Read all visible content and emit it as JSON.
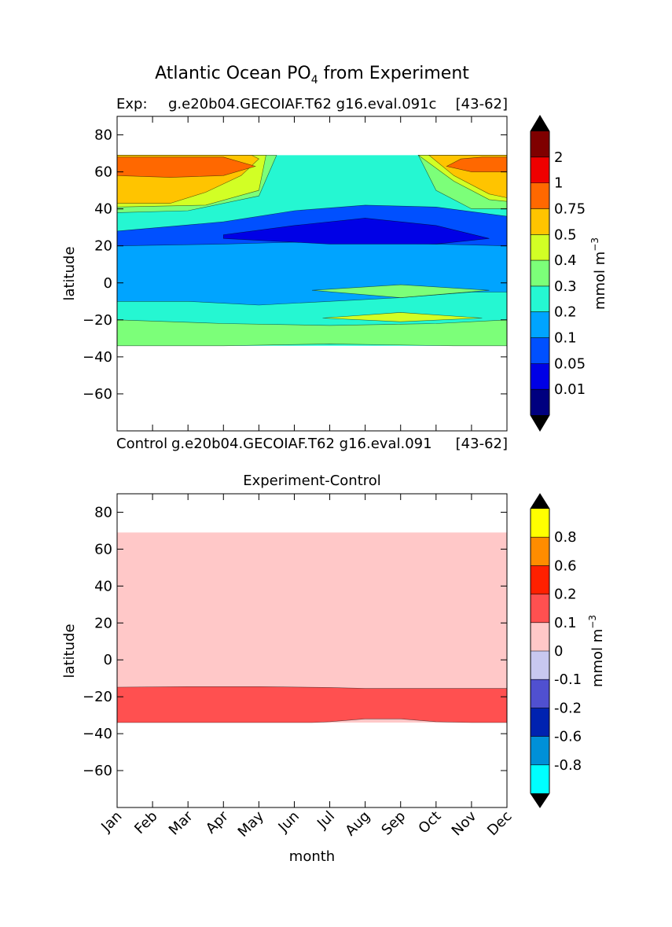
{
  "figure": {
    "title_main": "Atlantic Ocean PO",
    "title_sub": "4",
    "title_rest": " from Experiment"
  },
  "chart_data": [
    {
      "type": "heatmap",
      "name": "experiment",
      "subtitle_left": "Exp:",
      "subtitle_center": "g.e20b04.GECOIAF.T62 g16.eval.091c",
      "subtitle_right": "[43-62]",
      "bottom_left": "Control",
      "bottom_center": "g.e20b04.GECOIAF.T62 g16.eval.091",
      "bottom_right": "[43-62]",
      "ylabel": "latitude",
      "xlabel": "",
      "xlim": [
        0,
        11
      ],
      "ylim": [
        -80,
        90
      ],
      "yticks": [
        80,
        60,
        40,
        20,
        0,
        -20,
        -40,
        -60
      ],
      "ytick_labels": [
        "80",
        "60",
        "40",
        "20",
        "0",
        "−20",
        "−40",
        "−60"
      ],
      "data_lat_range": [
        -34,
        69
      ],
      "colorbar": {
        "label": "mmol m",
        "label_exp": "−3",
        "levels": [
          "0.01",
          "0.05",
          "0.1",
          "0.2",
          "0.3",
          "0.4",
          "0.5",
          "0.75",
          "1",
          "2"
        ],
        "colors": [
          "#00007f",
          "#0000e6",
          "#0050ff",
          "#00a4ff",
          "#25f7d2",
          "#7cff79",
          "#d2ff25",
          "#ffc400",
          "#ff6800",
          "#ef0000",
          "#7f0000"
        ],
        "extend": "both"
      },
      "regions": [
        {
          "level": 4,
          "t": [
            0,
            11,
            11,
            0
          ],
          "lat": [
            -34,
            -34,
            69,
            69
          ],
          "desc": "background 0.2-0.3"
        },
        {
          "level": 5,
          "t": [
            0,
            3,
            6,
            9.5,
            11,
            11,
            9,
            6,
            3,
            0
          ],
          "lat": [
            -34,
            -34,
            -33,
            -34,
            -34,
            -20,
            -22,
            -23,
            -22,
            -20
          ]
        },
        {
          "level": 3,
          "t": [
            0,
            2,
            4,
            6,
            8,
            10,
            11,
            11,
            8,
            6,
            4,
            2,
            0
          ],
          "lat": [
            -10,
            -10,
            -12,
            -10,
            -8,
            -5,
            -5,
            25,
            33,
            34,
            30,
            24,
            20
          ]
        },
        {
          "level": 5,
          "t": [
            5.5,
            8,
            10.5,
            8,
            5.5
          ],
          "lat": [
            -4,
            -8,
            -4,
            -1,
            -4
          ]
        },
        {
          "level": 6,
          "t": [
            5.8,
            8,
            10.3,
            8,
            5.8
          ],
          "lat": [
            -19,
            -21,
            -19,
            -16,
            -19
          ]
        },
        {
          "level": 2,
          "t": [
            0,
            3,
            5,
            7,
            9,
            11,
            11,
            9,
            7,
            5,
            3,
            0
          ],
          "lat": [
            20,
            21,
            22,
            22,
            21,
            20,
            36,
            41,
            42,
            39,
            33,
            28
          ]
        },
        {
          "level": 1,
          "t": [
            3,
            6,
            9,
            10.5,
            9,
            7,
            5,
            3
          ],
          "lat": [
            24,
            21,
            21,
            24,
            31,
            35,
            31,
            26
          ]
        },
        {
          "level": 5,
          "t": [
            0,
            2,
            4,
            4.5,
            4,
            2,
            0
          ],
          "lat": [
            38,
            39,
            47,
            69,
            69,
            69,
            69
          ]
        },
        {
          "level": 5,
          "t": [
            8.5,
            9,
            10,
            11,
            11,
            9.5,
            8.5
          ],
          "lat": [
            69,
            50,
            40,
            40,
            69,
            69,
            69
          ]
        },
        {
          "level": 6,
          "t": [
            0,
            2.5,
            4,
            4.2,
            3,
            0
          ],
          "lat": [
            41,
            42,
            50,
            69,
            69,
            69
          ]
        },
        {
          "level": 6,
          "t": [
            8.5,
            9.5,
            10.5,
            11,
            11,
            9,
            8.5
          ],
          "lat": [
            69,
            55,
            45,
            44,
            69,
            69,
            69
          ]
        },
        {
          "level": 7,
          "t": [
            0,
            1.5,
            2.5,
            3.5,
            4,
            3.8,
            0
          ],
          "lat": [
            43,
            43,
            49,
            58,
            67,
            69,
            69
          ]
        },
        {
          "level": 7,
          "t": [
            8.8,
            9.5,
            10.5,
            11,
            11,
            8.8
          ],
          "lat": [
            69,
            58,
            48,
            46,
            69,
            69
          ]
        },
        {
          "level": 8,
          "t": [
            0,
            1.5,
            3,
            3.9,
            3,
            1.5,
            0
          ],
          "lat": [
            58,
            57,
            58,
            63,
            68,
            68,
            68
          ]
        },
        {
          "level": 8,
          "t": [
            11,
            10.3,
            9.7,
            9.3,
            10,
            11
          ],
          "lat": [
            68,
            68,
            67,
            63,
            60,
            60
          ]
        }
      ]
    },
    {
      "type": "heatmap",
      "name": "difference",
      "title": "Experiment-Control",
      "ylabel": "latitude",
      "xlabel": "month",
      "xlim": [
        0,
        11
      ],
      "ylim": [
        -80,
        90
      ],
      "yticks": [
        80,
        60,
        40,
        20,
        0,
        -20,
        -40,
        -60
      ],
      "ytick_labels": [
        "80",
        "60",
        "40",
        "20",
        "0",
        "−20",
        "−40",
        "−60"
      ],
      "categories": [
        "Jan",
        "Feb",
        "Mar",
        "Apr",
        "May",
        "Jun",
        "Jul",
        "Aug",
        "Sep",
        "Oct",
        "Nov",
        "Dec"
      ],
      "colorbar": {
        "label": "mmol m",
        "label_exp": "−3",
        "levels": [
          "-0.8",
          "-0.6",
          "-0.2",
          "-0.1",
          "0",
          "0.1",
          "0.2",
          "0.6",
          "0.8"
        ],
        "colors": [
          "#00ffff",
          "#0090d8",
          "#0022b0",
          "#5050d0",
          "#c8c8f0",
          "#ffc8c8",
          "#ff5050",
          "#ff2000",
          "#ff8c00",
          "#ffff00"
        ],
        "extend": "both"
      },
      "regions": [
        {
          "level": 5,
          "t": [
            0,
            11,
            11,
            0
          ],
          "lat": [
            -34,
            -34,
            69,
            69
          ],
          "desc": "0 to 0.1 field"
        },
        {
          "level": 6,
          "t": [
            0,
            2,
            4,
            5.5,
            6,
            7,
            8,
            9,
            10,
            11,
            11,
            9,
            7,
            6,
            4,
            2,
            0
          ],
          "lat": [
            -34,
            -34,
            -34,
            -34,
            -33.5,
            -32,
            -32,
            -33.5,
            -34,
            -34,
            -15.5,
            -15.5,
            -15.5,
            -15,
            -14.5,
            -14.5,
            -14.8
          ]
        }
      ]
    }
  ]
}
